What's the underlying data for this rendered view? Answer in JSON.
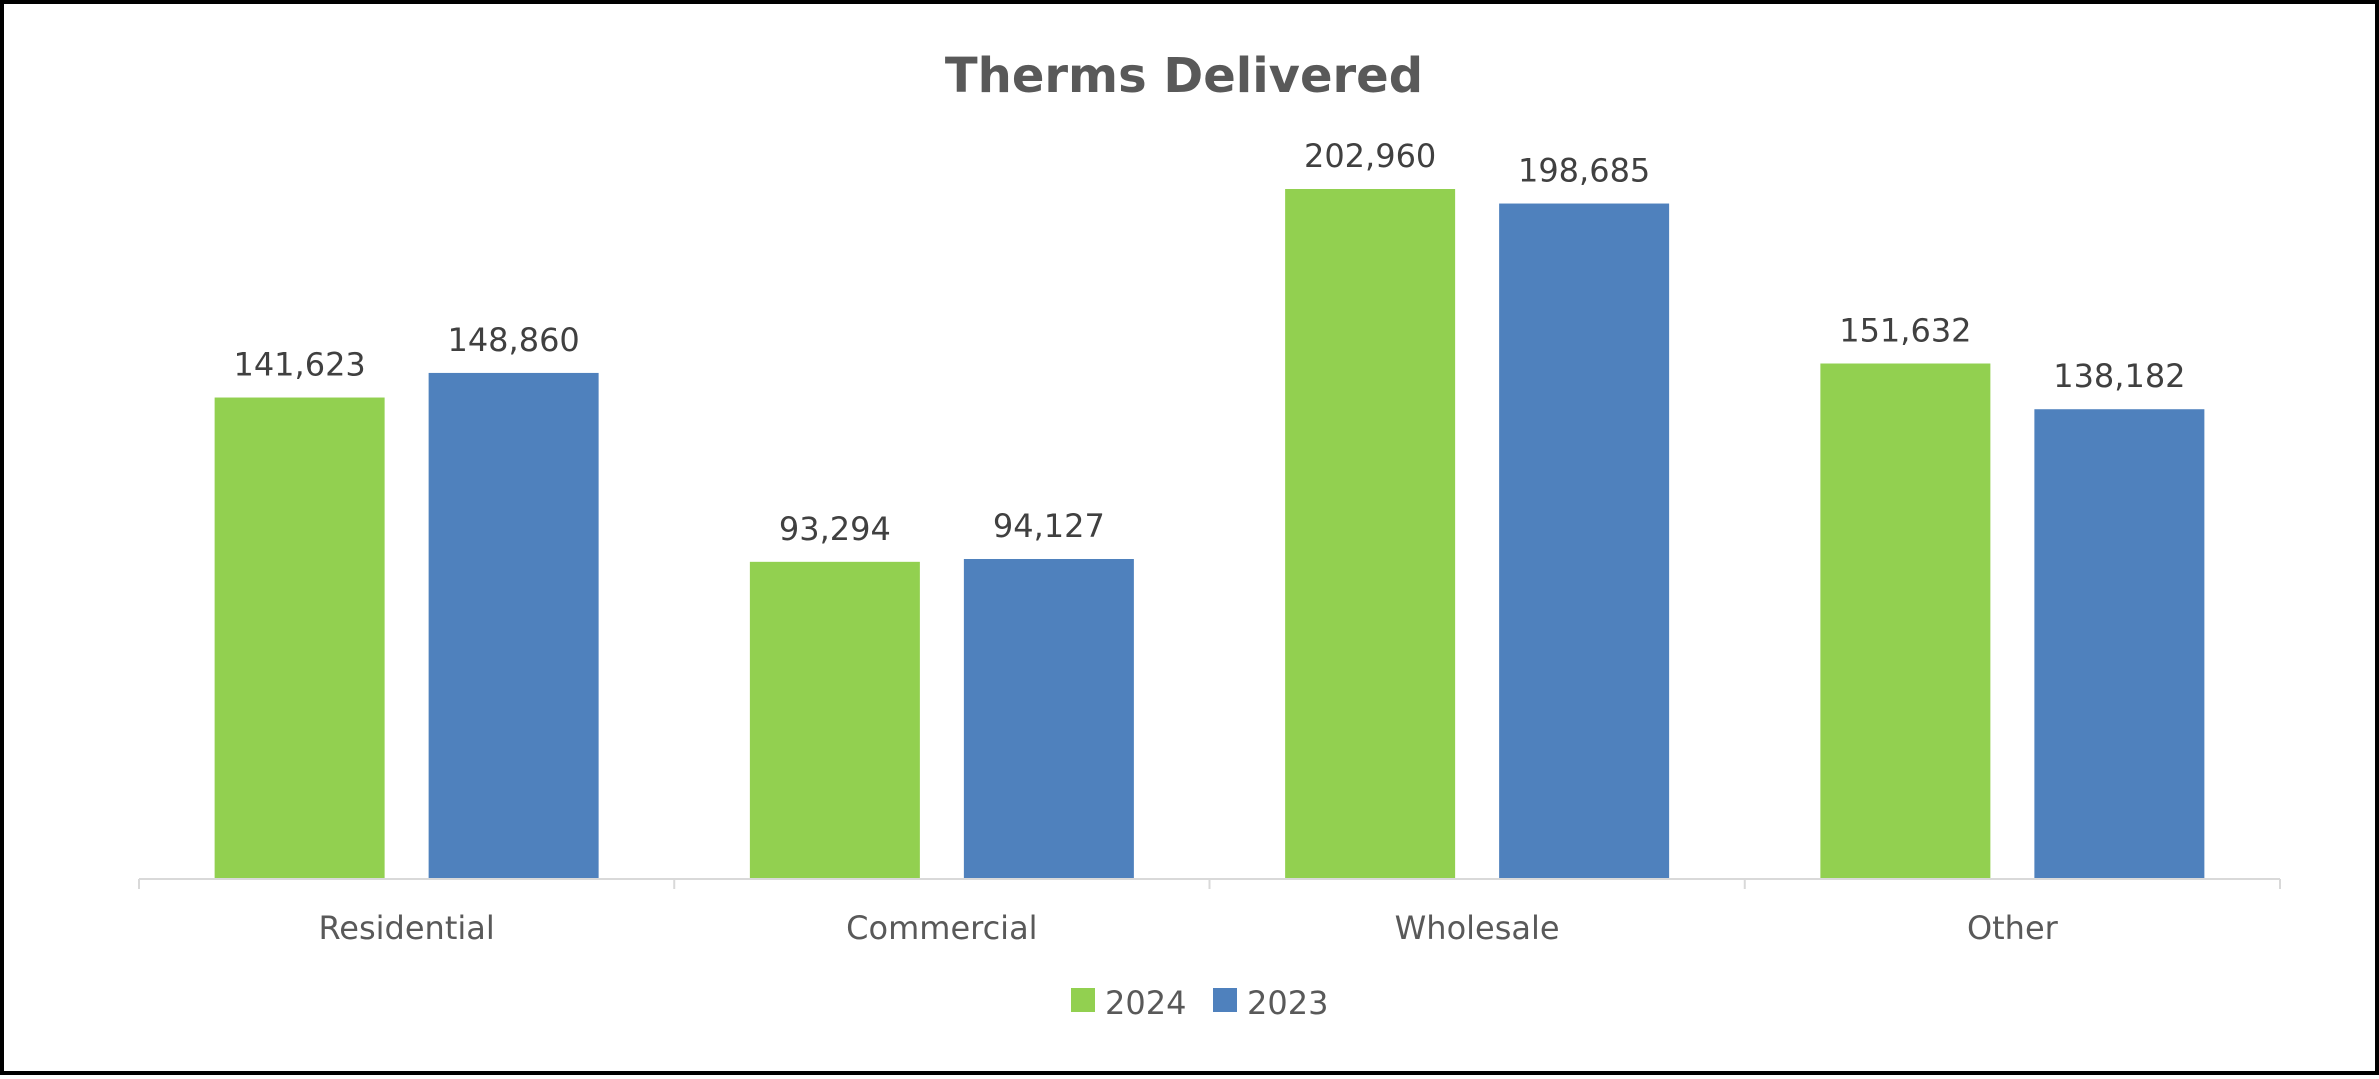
{
  "chart_data": {
    "type": "bar",
    "title": "Therms Delivered",
    "categories": [
      "Residential",
      "Commercial",
      "Wholesale",
      "Other"
    ],
    "series": [
      {
        "name": "2024",
        "color": "#92d050",
        "values": [
          141623,
          93294,
          202960,
          151632
        ],
        "labels": [
          "141,623",
          "93,294",
          "202,960",
          "151,632"
        ]
      },
      {
        "name": "2023",
        "color": "#4f81bd",
        "values": [
          148860,
          94127,
          198685,
          138182
        ],
        "labels": [
          "148,860",
          "94,127",
          "198,685",
          "138,182"
        ]
      }
    ],
    "ylim": [
      0,
      202960
    ],
    "grid": false,
    "legend_position": "bottom"
  }
}
